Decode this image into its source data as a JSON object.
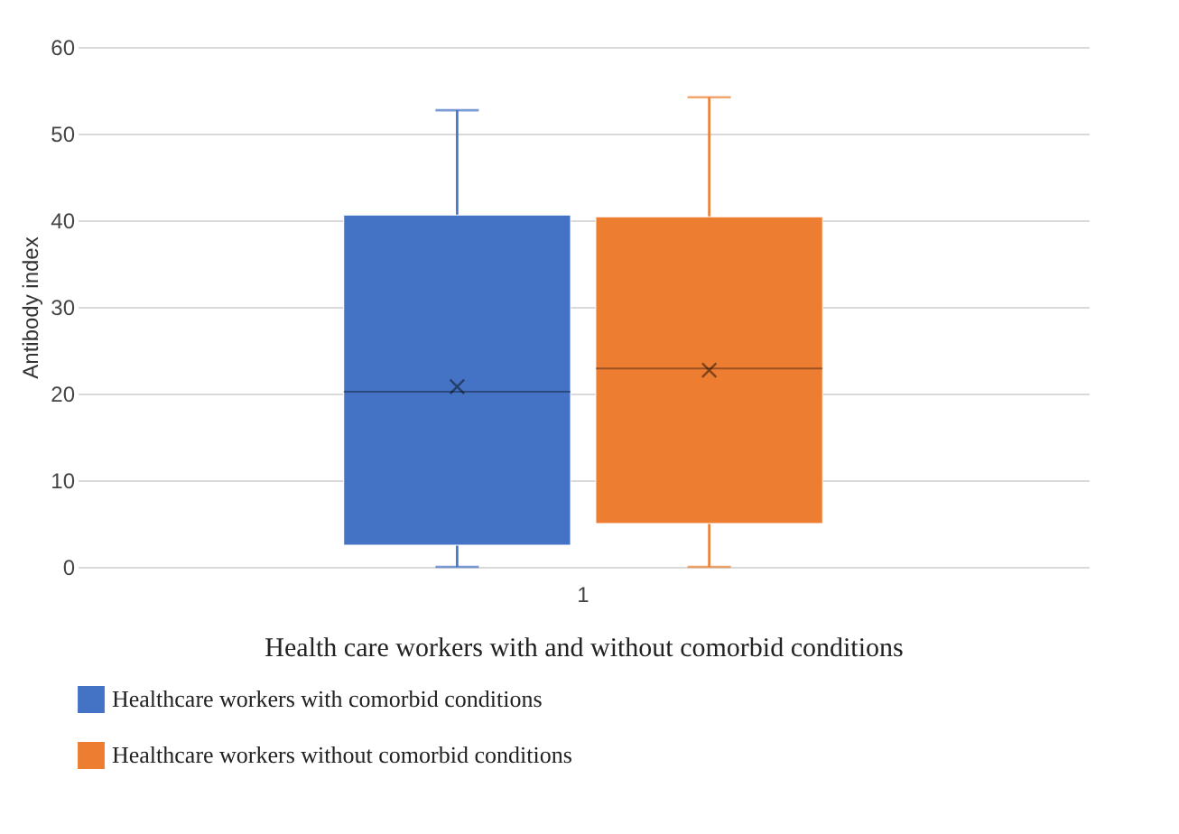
{
  "chart_data": {
    "type": "box",
    "categories": [
      "1"
    ],
    "xlabel": "Health care workers with and without comorbid conditions",
    "ylabel": "Antibody index",
    "ylim": [
      0,
      60
    ],
    "yticks": [
      0,
      10,
      20,
      30,
      40,
      50,
      60
    ],
    "grid": "y",
    "legend": "bottom",
    "marker": "cross",
    "series": [
      {
        "name": "Healthcare workers with comorbid conditions",
        "color": "#4472c4",
        "boxes": [
          {
            "low": 0,
            "q1": 2.5,
            "median": 20.2,
            "q3": 40.6,
            "high": 52.7,
            "mean": 20.8
          }
        ]
      },
      {
        "name": "Healthcare workers without comorbid conditions",
        "color": "#ed7d31",
        "boxes": [
          {
            "low": 0,
            "q1": 5,
            "median": 22.9,
            "q3": 40.4,
            "high": 54.2,
            "mean": 22.7
          }
        ]
      }
    ]
  }
}
